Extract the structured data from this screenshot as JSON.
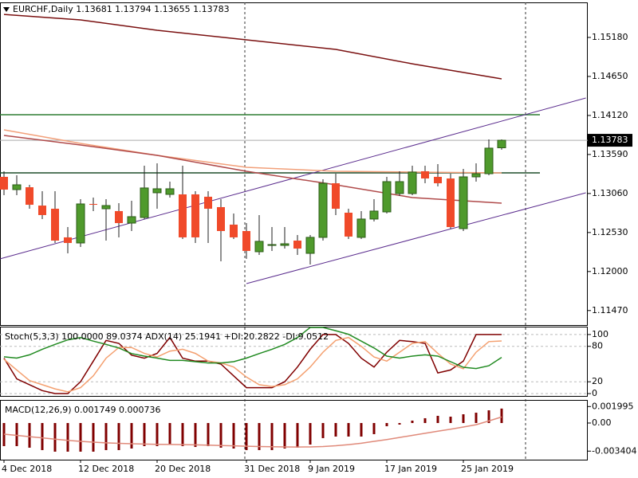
{
  "chart_data": [
    {
      "type": "candlestick",
      "title": "EURCHF,Daily  1.13681 1.13794 1.13655 1.13783",
      "categories": [
        "4 Dec 2018",
        null,
        null,
        null,
        null,
        null,
        "12 Dec 2018",
        null,
        null,
        null,
        null,
        null,
        "20 Dec 2018",
        null,
        null,
        null,
        null,
        null,
        null,
        "31 Dec 2018",
        null,
        null,
        null,
        null,
        "9 Jan 2019",
        null,
        null,
        null,
        null,
        null,
        "17 Jan 2019",
        null,
        null,
        null,
        null,
        null,
        "25 Jan 2019",
        null,
        null,
        null
      ],
      "open": [
        1.13286,
        1.13113,
        1.13145,
        1.12896,
        1.12853,
        1.12464,
        1.12388,
        1.12918,
        1.12853,
        1.12821,
        1.12658,
        1.12734,
        1.1307,
        1.13048,
        1.13048,
        1.13048,
        1.13016,
        1.12875,
        1.12637,
        1.1255,
        1.12269,
        1.12355,
        1.12355,
        1.1242,
        1.12247,
        1.12464,
        1.13199,
        1.12799,
        1.12464,
        1.12713,
        1.1281,
        1.13059,
        1.13059,
        1.13362,
        1.13286,
        1.13264,
        1.12583,
        1.13286,
        1.13329,
        1.13681
      ],
      "high": [
        1.13362,
        1.13308,
        1.13178,
        1.13091,
        1.13091,
        1.12604,
        1.12983,
        1.13005,
        1.12983,
        1.12929,
        1.12961,
        1.13437,
        1.1347,
        1.13221,
        1.13437,
        1.13091,
        1.13091,
        1.12983,
        1.12788,
        1.12658,
        1.12767,
        1.12604,
        1.12604,
        1.12496,
        1.12496,
        1.13254,
        1.13329,
        1.12853,
        1.12821,
        1.12983,
        1.13286,
        1.13362,
        1.13437,
        1.13437,
        1.13459,
        1.13329,
        1.13394,
        1.1347,
        1.13795,
        1.13794
      ],
      "low": [
        1.13037,
        1.13037,
        1.12853,
        1.12713,
        1.12388,
        1.12247,
        1.12334,
        1.12821,
        1.1242,
        1.12464,
        1.1255,
        1.12713,
        1.12853,
        1.13005,
        1.12442,
        1.12388,
        1.12388,
        1.12139,
        1.12442,
        1.12172,
        1.12226,
        1.1228,
        1.12312,
        1.12226,
        1.12096,
        1.1242,
        1.12767,
        1.12442,
        1.12442,
        1.1268,
        1.12788,
        1.13026,
        1.13037,
        1.13199,
        1.13156,
        1.12583,
        1.1255,
        1.13221,
        1.13308,
        1.13655
      ],
      "close": [
        1.13113,
        1.13178,
        1.12907,
        1.12767,
        1.1242,
        1.12388,
        1.12918,
        1.12907,
        1.12896,
        1.12658,
        1.12745,
        1.13135,
        1.13124,
        1.13124,
        1.12464,
        1.12464,
        1.12853,
        1.1255,
        1.12464,
        1.1228,
        1.1241,
        1.12366,
        1.12377,
        1.12312,
        1.12464,
        1.13199,
        1.12853,
        1.12475,
        1.12713,
        1.12821,
        1.13221,
        1.13221,
        1.13351,
        1.13264,
        1.13199,
        1.12604,
        1.13286,
        1.13329,
        1.13676,
        1.13783
      ],
      "up_color": "#4f9a2c",
      "down_color": "#f04a2a",
      "ylim": [
        1.11273,
        1.15656
      ],
      "yticks": [
        {
          "value": 1.1147,
          "label": "1.11470"
        },
        {
          "value": 1.12,
          "label": "1.12000"
        },
        {
          "value": 1.1253,
          "label": "1.12530"
        },
        {
          "value": 1.1306,
          "label": "1.13060"
        },
        {
          "value": 1.1359,
          "label": "1.13590"
        },
        {
          "value": 1.1412,
          "label": "1.14120"
        },
        {
          "value": 1.1465,
          "label": "1.14650"
        },
        {
          "value": 1.1518,
          "label": "1.15180"
        }
      ],
      "last_price": 1.13783,
      "moving_averages": [
        {
          "color": "#7a1010",
          "x": [
            0,
            6,
            12,
            19,
            26,
            32,
            39
          ],
          "values": [
            1.15493,
            1.15418,
            1.15277,
            1.15147,
            1.15017,
            1.14822,
            1.14617
          ]
        },
        {
          "color": "#f2a07a",
          "x": [
            0,
            6,
            12,
            19,
            26,
            32,
            39
          ],
          "values": [
            1.13924,
            1.1374,
            1.13578,
            1.13416,
            1.13362,
            1.13351,
            1.1334
          ]
        },
        {
          "color": "#b04a4a",
          "x": [
            0,
            6,
            12,
            19,
            26,
            32,
            39
          ],
          "values": [
            1.13849,
            1.13719,
            1.13578,
            1.13362,
            1.13178,
            1.13005,
            1.12929
          ]
        }
      ],
      "levels": [
        {
          "color": "#2e7d32",
          "value": 1.1413
        },
        {
          "color": "#1f4d2a",
          "value": 1.1334
        }
      ],
      "trendlines": [
        {
          "color": "#5b2d8e",
          "x": [
            -0.3,
            45.6
          ],
          "values": [
            1.12172,
            1.14357
          ]
        },
        {
          "color": "#5b2d8e",
          "x": [
            19,
            45.6
          ],
          "values": [
            1.11836,
            1.1307
          ]
        }
      ]
    },
    {
      "type": "stochastic",
      "title": "Stoch(5,3,3) 100.0000 89.0374  ADX(14) 25.1941 +DI:20.2822 -DI:9.0512",
      "ylim": [
        -4,
        112
      ],
      "yticks": [
        0,
        20,
        80,
        100
      ],
      "y2lim": [
        10,
        37
      ],
      "series": [
        {
          "color": "#800000",
          "values": [
            60,
            25,
            15,
            5,
            0,
            0,
            20,
            55,
            90,
            85,
            65,
            60,
            68,
            95,
            60,
            55,
            55,
            50,
            30,
            10,
            10,
            10,
            20,
            45,
            75,
            100,
            100,
            85,
            60,
            45,
            70,
            90,
            88,
            85,
            35,
            40,
            55,
            100,
            100,
            100
          ]
        },
        {
          "color": "#f4a070",
          "values": [
            58,
            40,
            22,
            15,
            8,
            3,
            10,
            30,
            60,
            78,
            78,
            68,
            62,
            72,
            75,
            68,
            55,
            52,
            45,
            28,
            15,
            12,
            15,
            25,
            45,
            70,
            90,
            95,
            80,
            62,
            55,
            70,
            85,
            88,
            68,
            50,
            42,
            70,
            88,
            89.0374
          ]
        },
        {
          "color": "#228b22",
          "axis": "y2",
          "values": [
            25.4,
            24.9,
            26.2,
            28.4,
            30.3,
            32.1,
            33.0,
            31.6,
            30.3,
            28.9,
            26.7,
            25.7,
            24.9,
            24.0,
            24.0,
            23.5,
            23.0,
            23.0,
            23.5,
            24.9,
            26.7,
            28.4,
            30.3,
            33.0,
            37.0,
            37.0,
            35.7,
            34.3,
            31.6,
            28.9,
            25.7,
            24.9,
            25.7,
            26.2,
            25.7,
            23.5,
            21.3,
            20.8,
            21.9,
            25.1941
          ]
        }
      ]
    },
    {
      "type": "macd",
      "title": "MACD(12,26,9) 0.001749 0.000736",
      "ylim": [
        -0.00444,
        0.0027
      ],
      "yticks": [
        {
          "value": -0.003404,
          "label": "-0.003404"
        },
        {
          "value": 0,
          "label": "0.00"
        },
        0.001995
      ],
      "bar_color": "#800000",
      "line_color": "#e08a7a",
      "values": [
        -0.0028,
        -0.0028,
        -0.00299,
        -0.00328,
        -0.00347,
        -0.00347,
        -0.00347,
        -0.00347,
        -0.00328,
        -0.00328,
        -0.00309,
        -0.0028,
        -0.0028,
        -0.00261,
        -0.0028,
        -0.0029,
        -0.0028,
        -0.00299,
        -0.00309,
        -0.00328,
        -0.00328,
        -0.00328,
        -0.00309,
        -0.00299,
        -0.00261,
        -0.00183,
        -0.00164,
        -0.00164,
        -0.00164,
        -0.00135,
        -0.00039,
        -0.00019,
        0.00029,
        0.00058,
        0.00087,
        0.00077,
        0.00106,
        0.00125,
        0.00154,
        0.001749
      ],
      "signal": [
        -0.00135,
        -0.0015,
        -0.00165,
        -0.0018,
        -0.00195,
        -0.0021,
        -0.00222,
        -0.00232,
        -0.0024,
        -0.00246,
        -0.00251,
        -0.00255,
        -0.00258,
        -0.0026,
        -0.00262,
        -0.00265,
        -0.00268,
        -0.00272,
        -0.00276,
        -0.00281,
        -0.00285,
        -0.00288,
        -0.0029,
        -0.00291,
        -0.0029,
        -0.00285,
        -0.00275,
        -0.00262,
        -0.00245,
        -0.00222,
        -0.002,
        -0.00175,
        -0.0015,
        -0.00125,
        -0.001,
        -0.00075,
        -0.00048,
        -0.0002,
        0.00025,
        0.000736
      ]
    }
  ]
}
